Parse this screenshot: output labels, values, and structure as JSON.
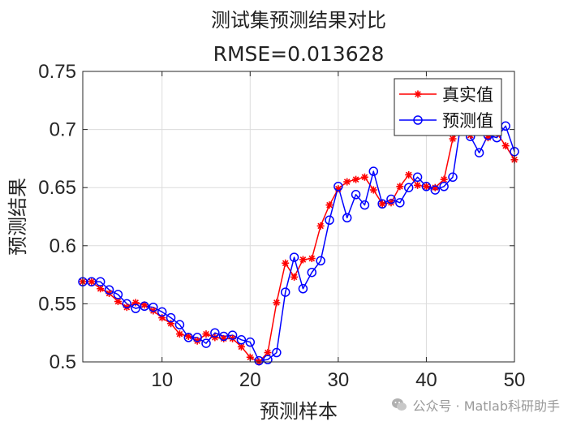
{
  "chart_data": {
    "type": "line",
    "title": "测试集预测结果对比",
    "subtitle": "RMSE=0.013628",
    "xlabel": "预测样本",
    "ylabel": "预测结果",
    "xlim": [
      1,
      50
    ],
    "ylim": [
      0.5,
      0.75
    ],
    "xticks": [
      10,
      20,
      30,
      40,
      50
    ],
    "yticks": [
      0.5,
      0.55,
      0.6,
      0.65,
      0.7,
      0.75
    ],
    "xtick_labels": [
      "10",
      "20",
      "30",
      "40",
      "50"
    ],
    "ytick_labels": [
      "0.5",
      "0.55",
      "0.6",
      "0.65",
      "0.7",
      "0.75"
    ],
    "grid": true,
    "legend_position": "top-right",
    "x": [
      1,
      2,
      3,
      4,
      5,
      6,
      7,
      8,
      9,
      10,
      11,
      12,
      13,
      14,
      15,
      16,
      17,
      18,
      19,
      20,
      21,
      22,
      23,
      24,
      25,
      26,
      27,
      28,
      29,
      30,
      31,
      32,
      33,
      34,
      35,
      36,
      37,
      38,
      39,
      40,
      41,
      42,
      43,
      44,
      45,
      46,
      47,
      48,
      49,
      50
    ],
    "series": [
      {
        "name": "真实值",
        "color": "#ff0000",
        "marker": "asterisk",
        "values": [
          0.569,
          0.569,
          0.563,
          0.559,
          0.552,
          0.547,
          0.551,
          0.549,
          0.544,
          0.538,
          0.533,
          0.524,
          0.522,
          0.518,
          0.524,
          0.521,
          0.52,
          0.52,
          0.513,
          0.504,
          0.5,
          0.508,
          0.551,
          0.585,
          0.573,
          0.588,
          0.589,
          0.617,
          0.635,
          0.649,
          0.655,
          0.657,
          0.659,
          0.648,
          0.636,
          0.637,
          0.651,
          0.661,
          0.652,
          0.651,
          0.65,
          0.657,
          0.692,
          0.705,
          0.695,
          0.703,
          0.693,
          0.697,
          0.686,
          0.674
        ]
      },
      {
        "name": "预测值",
        "color": "#0000ff",
        "marker": "circle",
        "values": [
          0.569,
          0.569,
          0.569,
          0.562,
          0.558,
          0.55,
          0.546,
          0.548,
          0.547,
          0.543,
          0.538,
          0.532,
          0.521,
          0.521,
          0.516,
          0.525,
          0.522,
          0.523,
          0.519,
          0.517,
          0.501,
          0.502,
          0.508,
          0.56,
          0.59,
          0.563,
          0.577,
          0.587,
          0.622,
          0.651,
          0.624,
          0.644,
          0.635,
          0.664,
          0.636,
          0.64,
          0.637,
          0.65,
          0.659,
          0.651,
          0.648,
          0.651,
          0.659,
          0.709,
          0.694,
          0.68,
          0.695,
          0.693,
          0.703,
          0.681
        ]
      }
    ]
  },
  "watermark": {
    "icon": "wechat-icon",
    "text": "公众号 · Matlab科研助手"
  }
}
